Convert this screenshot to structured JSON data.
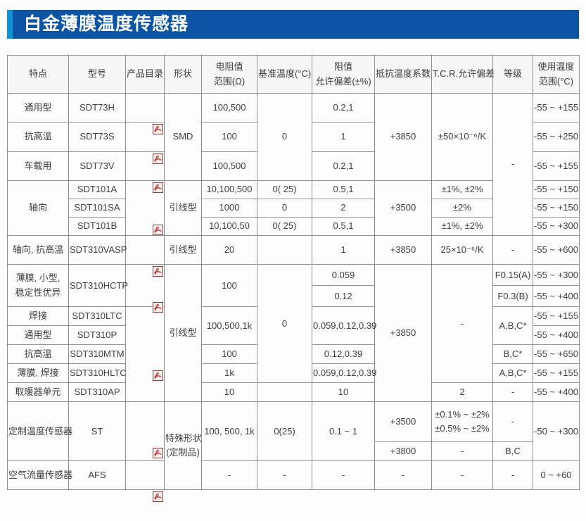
{
  "page": {
    "title": "白金薄膜温度传感器"
  },
  "colors": {
    "title_bar": "#0d55a4",
    "title_accent": "#1095d3",
    "border": "#909090",
    "header_bg": "#f7f7f7",
    "pdf_red": "#c03030",
    "text": "#3e3e3e"
  },
  "table": {
    "column_headers": [
      "特点",
      "型号",
      "产品目录",
      "形状",
      "电阻值\n范围(Ω)",
      "基准温度(°C)",
      "阻值\n允许偏差(±%)",
      "抵抗温度系数",
      "T.C.R.允许偏差",
      "等级",
      "使用温度\n范围(°C)"
    ],
    "pdf_icon_name": "pdf-catalog-link",
    "rows": [
      {
        "cells": [
          {
            "t": "通用型"
          },
          {
            "t": "SDT73H"
          },
          {
            "pdf": true
          },
          {
            "t": "SMD",
            "rs": 3
          },
          {
            "t": "100,500"
          },
          {
            "t": "0",
            "rs": 3
          },
          {
            "t": "0.2,1"
          },
          {
            "t": "+3850",
            "rs": 3
          },
          {
            "t": "±50×10⁻⁶/K",
            "rs": 3
          },
          {
            "t": "-",
            "rs": 6
          },
          {
            "t": "-55 ~ +155"
          }
        ]
      },
      {
        "cells": [
          {
            "t": "抗高温"
          },
          {
            "t": "SDT73S"
          },
          {
            "pdf": true
          },
          {
            "t": "100"
          },
          {
            "t": "1"
          },
          {
            "t": "-55 ~ +250"
          }
        ]
      },
      {
        "cells": [
          {
            "t": "车载用"
          },
          {
            "t": "SDT73V"
          },
          {
            "pdf": true
          },
          {
            "t": "100,500"
          },
          {
            "t": "0.2,1"
          },
          {
            "t": "-55 ~ +155"
          }
        ]
      },
      {
        "cells": [
          {
            "t": "轴向",
            "rs": 3
          },
          {
            "t": "SDT101A"
          },
          {
            "pdf": true,
            "rs": 3
          },
          {
            "t": "引线型",
            "rs": 3
          },
          {
            "t": "10,100,500"
          },
          {
            "t": "0( 25)"
          },
          {
            "t": "0.5,1"
          },
          {
            "t": "+3500",
            "rs": 3
          },
          {
            "t": "±1%, ±2%"
          },
          {
            "t": "-55 ~ +150"
          }
        ]
      },
      {
        "cells": [
          {
            "t": "SDT101SA"
          },
          {
            "t": "1000"
          },
          {
            "t": "0"
          },
          {
            "t": "2"
          },
          {
            "t": "±2%"
          },
          {
            "t": "-55 ~ +150"
          }
        ]
      },
      {
        "cells": [
          {
            "t": "SDT101B"
          },
          {
            "t": "10,100,50"
          },
          {
            "t": "0( 25)"
          },
          {
            "t": "0.5,1"
          },
          {
            "t": "±1%, ±2%"
          },
          {
            "t": "-55 ~ +300"
          }
        ]
      },
      {
        "cells": [
          {
            "t": "轴向, 抗高温"
          },
          {
            "t": "SDT310VASP"
          },
          {
            "pdf": true
          },
          {
            "t": "引线型"
          },
          {
            "t": "20"
          },
          {
            "t": ""
          },
          {
            "t": "1"
          },
          {
            "t": "+3850"
          },
          {
            "t": "25×10⁻⁶/K"
          },
          {
            "t": "-"
          },
          {
            "t": "-55 ~ +600"
          }
        ]
      },
      {
        "cells": [
          {
            "t": "薄膜, 小型,\n稳定性优异",
            "rs": 2
          },
          {
            "t": "SDT310HCTP",
            "rs": 2
          },
          {
            "pdf": true,
            "rs": 2
          },
          {
            "t": "引线型",
            "rs": 7
          },
          {
            "t": "100",
            "rs": 2
          },
          {
            "t": "0",
            "rs": 6
          },
          {
            "t": "0.059"
          },
          {
            "t": "+3850",
            "rs": 7
          },
          {
            "t": "-",
            "rs": 6
          },
          {
            "t": "F0.15(A)"
          },
          {
            "t": "-55 ~ +300"
          }
        ]
      },
      {
        "cells": [
          {
            "t": "0.12"
          },
          {
            "t": "F0.3(B)"
          },
          {
            "t": "-55 ~ +400"
          }
        ]
      },
      {
        "cells": [
          {
            "t": "焊接"
          },
          {
            "t": "SDT310LTC"
          },
          {
            "pdf": true,
            "rs": 5
          },
          {
            "t": "100,500,1k",
            "rs": 2
          },
          {
            "t": "0.059,0.12,0.39",
            "rs": 2
          },
          {
            "t": "A,B,C*",
            "rs": 2
          },
          {
            "t": "-55 ~ +155"
          }
        ]
      },
      {
        "cells": [
          {
            "t": "通用型"
          },
          {
            "t": "SDT310P"
          },
          {
            "t": "-55 ~ +400"
          }
        ]
      },
      {
        "cells": [
          {
            "t": "抗高温"
          },
          {
            "t": "SDT310MTM"
          },
          {
            "t": "100"
          },
          {
            "t": "0.12,0.39"
          },
          {
            "t": "B,C*"
          },
          {
            "t": "-55 ~ +650"
          }
        ]
      },
      {
        "cells": [
          {
            "t": "薄膜, 焊接"
          },
          {
            "t": "SDT310HLTC"
          },
          {
            "t": "1k"
          },
          {
            "t": "0.059,0.12,0.39"
          },
          {
            "t": "A,B,C*"
          },
          {
            "t": "-55 ~ +155"
          }
        ]
      },
      {
        "cells": [
          {
            "t": "取暖器单元"
          },
          {
            "t": "SDT310AP"
          },
          {
            "t": "10"
          },
          {
            "t": ""
          },
          {
            "t": "10"
          },
          {
            "t": "2"
          },
          {
            "t": "-"
          },
          {
            "t": "-55 ~ +400"
          }
        ]
      },
      {
        "cells": [
          {
            "t": "定制温度传感器",
            "rs": 2
          },
          {
            "t": "ST",
            "rs": 2
          },
          {
            "pdf": true,
            "rs": 2
          },
          {
            "t": "特殊形状\n(定制品)",
            "rs": 3
          },
          {
            "t": "100, 500, 1k",
            "rs": 2
          },
          {
            "t": "0(25)",
            "rs": 2
          },
          {
            "t": "0.1 ~ 1",
            "rs": 2
          },
          {
            "t": "+3500"
          },
          {
            "t": "±0.1% ~ ±2%\n±0.5% ~ ±2%"
          },
          {
            "t": "-"
          },
          {
            "t": "-50 ~ +300",
            "rs": 2
          }
        ]
      },
      {
        "cells": [
          {
            "t": "+3800"
          },
          {
            "t": "-"
          },
          {
            "t": "B,C"
          }
        ]
      },
      {
        "cells": [
          {
            "t": "空气流量传感器"
          },
          {
            "t": "AFS"
          },
          {
            "pdf": true
          },
          {
            "t": "-"
          },
          {
            "t": "-"
          },
          {
            "t": "-"
          },
          {
            "t": "-"
          },
          {
            "t": "-"
          },
          {
            "t": "-"
          },
          {
            "t": "0 ~ +60"
          }
        ]
      }
    ]
  }
}
